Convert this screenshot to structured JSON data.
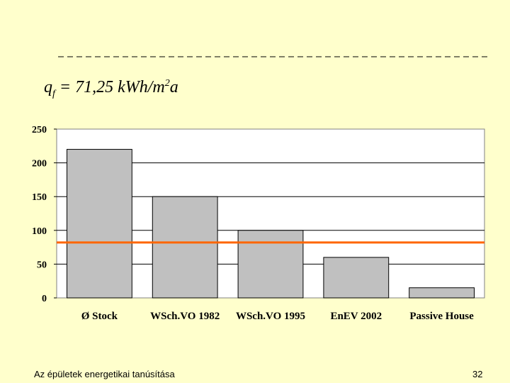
{
  "formula": {
    "symbol": "q",
    "subscript": "f",
    "text": " = 71,25 kWh/m",
    "superscript": "2",
    "suffix": "a"
  },
  "footer": {
    "title": "Az épületek energetikai tanúsítása",
    "page_number": "32"
  },
  "chart_data": {
    "type": "bar",
    "categories": [
      "Ø Stock",
      "WSch.VO 1982",
      "WSch.VO 1995",
      "EnEV 2002",
      "Passive House"
    ],
    "values": [
      220,
      150,
      100,
      60,
      15
    ],
    "ylim": [
      0,
      250
    ],
    "yticks": [
      "0",
      "50",
      "100",
      "150",
      "200",
      "250"
    ],
    "reference_line": 82,
    "grid": true,
    "colors": {
      "bar": "#C0C0C0",
      "reference_line": "#FF6600"
    }
  }
}
